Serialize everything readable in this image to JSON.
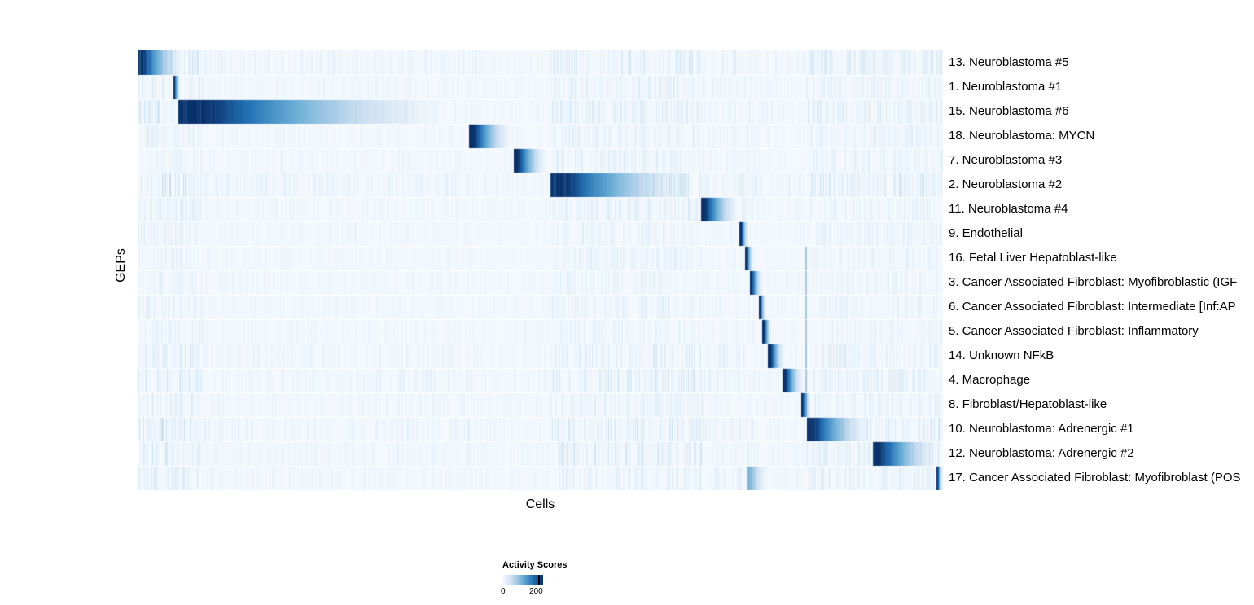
{
  "figure": {
    "y_axis_label": "GEPs",
    "x_axis_label": "Cells",
    "legend": {
      "title": "Activity Scores",
      "min_label": "0",
      "max_label": "200"
    }
  },
  "chart_data": {
    "type": "heatmap",
    "title": "",
    "xlabel": "Cells",
    "ylabel": "GEPs",
    "legend_title": "Activity Scores",
    "value_range": [
      0,
      200
    ],
    "legend_position": "bottom-left",
    "colormap": {
      "name": "Blues",
      "stops": [
        "#f7fbff",
        "#c6dbef",
        "#6baed6",
        "#2171b5",
        "#08306b"
      ]
    },
    "rows": [
      {
        "label": "13. Neuroblastoma #5",
        "noise": 0.55,
        "segments": [
          {
            "start": 0.0,
            "end": 0.06,
            "peak": 1.0
          }
        ]
      },
      {
        "label": "1. Neuroblastoma #1",
        "noise": 0.35,
        "segments": [
          {
            "start": 0.0445,
            "end": 0.0525,
            "peak": 1.0
          }
        ]
      },
      {
        "label": "15. Neuroblastoma #6",
        "noise": 0.5,
        "segments": [
          {
            "start": 0.0506,
            "end": 0.4106,
            "peak": 1.0
          }
        ]
      },
      {
        "label": "18. Neuroblastoma: MYCN",
        "noise": 0.35,
        "segments": [
          {
            "start": 0.4116,
            "end": 0.4672,
            "peak": 1.0
          }
        ]
      },
      {
        "label": "7. Neuroblastoma #3",
        "noise": 0.35,
        "segments": [
          {
            "start": 0.4672,
            "end": 0.5106,
            "peak": 1.0
          }
        ]
      },
      {
        "label": "2. Neuroblastoma #2",
        "noise": 0.6,
        "segments": [
          {
            "start": 0.5127,
            "end": 0.6997,
            "peak": 1.0
          }
        ]
      },
      {
        "label": "11. Neuroblastoma #4",
        "noise": 0.4,
        "segments": [
          {
            "start": 0.6997,
            "end": 0.7482,
            "peak": 1.0
          }
        ]
      },
      {
        "label": "9. Endothelial",
        "noise": 0.3,
        "segments": [
          {
            "start": 0.7482,
            "end": 0.7584,
            "peak": 1.0
          }
        ]
      },
      {
        "label": "16. Fetal Liver Hepatoblast-like",
        "noise": 0.3,
        "segments": [
          {
            "start": 0.7543,
            "end": 0.7654,
            "peak": 1.0
          }
        ]
      },
      {
        "label": "3. Cancer Associated Fibroblast: Myofibroblastic (IGF",
        "noise": 0.3,
        "segments": [
          {
            "start": 0.7604,
            "end": 0.7765,
            "peak": 1.0
          }
        ]
      },
      {
        "label": "6. Cancer Associated Fibroblast: Intermediate [Inf:AP",
        "noise": 0.3,
        "segments": [
          {
            "start": 0.7715,
            "end": 0.7806,
            "peak": 1.0
          }
        ]
      },
      {
        "label": "5. Cancer Associated Fibroblast: Inflammatory",
        "noise": 0.3,
        "segments": [
          {
            "start": 0.7765,
            "end": 0.7877,
            "peak": 1.0
          }
        ]
      },
      {
        "label": "14. Unknown NFkB",
        "noise": 0.45,
        "segments": [
          {
            "start": 0.7836,
            "end": 0.8038,
            "peak": 1.0
          }
        ]
      },
      {
        "label": "4. Macrophage",
        "noise": 0.5,
        "segments": [
          {
            "start": 0.8018,
            "end": 0.8271,
            "peak": 1.0
          }
        ]
      },
      {
        "label": "8. Fibroblast/Hepatoblast-like",
        "noise": 0.35,
        "segments": [
          {
            "start": 0.8241,
            "end": 0.8362,
            "peak": 1.0
          }
        ]
      },
      {
        "label": "10. Neuroblastoma: Adrenergic #1",
        "noise": 0.55,
        "segments": [
          {
            "start": 0.8312,
            "end": 0.9141,
            "peak": 1.0
          }
        ]
      },
      {
        "label": "12. Neuroblastoma: Adrenergic #2",
        "noise": 0.5,
        "segments": [
          {
            "start": 0.9131,
            "end": 1.0,
            "peak": 1.0
          }
        ]
      },
      {
        "label": "17. Cancer Associated Fibroblast: Myofibroblast (POS",
        "noise": 0.4,
        "segments": [
          {
            "start": 0.757,
            "end": 0.785,
            "peak": 0.45
          },
          {
            "start": 0.992,
            "end": 1.0,
            "peak": 1.0
          }
        ]
      }
    ],
    "bands": [
      {
        "start": 0.0,
        "end": 0.08,
        "alpha": 0.55
      },
      {
        "start": 0.08,
        "end": 0.42,
        "alpha": 0.22
      },
      {
        "start": 0.42,
        "end": 0.512,
        "alpha": 0.15
      },
      {
        "start": 0.512,
        "end": 0.7,
        "alpha": 0.5
      },
      {
        "start": 0.7,
        "end": 0.77,
        "alpha": 0.3
      },
      {
        "start": 0.77,
        "end": 0.83,
        "alpha": 0.18
      },
      {
        "start": 0.83,
        "end": 1.0,
        "alpha": 0.45
      }
    ],
    "accents": [
      {
        "x": 0.829,
        "row_start": 8,
        "row_end": 14,
        "alpha": 0.4
      }
    ]
  }
}
